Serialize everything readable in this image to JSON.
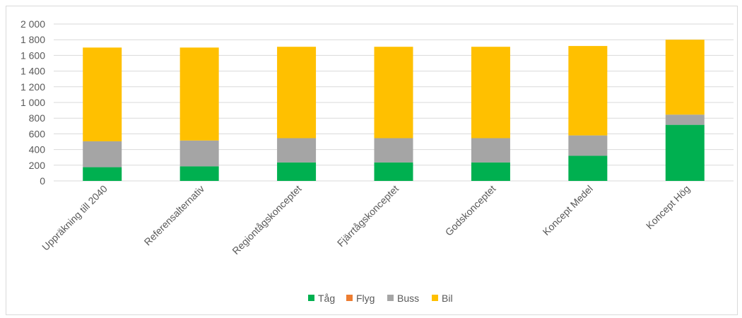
{
  "chart_data": {
    "type": "bar",
    "stacked": true,
    "categories": [
      "Uppräkning till 2040",
      "Referensalternativ",
      "Regiontågskonceptet",
      "Fjärrtågskonceptet",
      "Godskonceptet",
      "Koncept Medel",
      "Koncept Hög"
    ],
    "series": [
      {
        "name": "Tåg",
        "color": "#00b050",
        "values": [
          175,
          185,
          235,
          235,
          235,
          320,
          715
        ]
      },
      {
        "name": "Flyg",
        "color": "#ed7d31",
        "values": [
          0,
          0,
          0,
          0,
          0,
          0,
          0
        ]
      },
      {
        "name": "Buss",
        "color": "#a5a5a5",
        "values": [
          330,
          330,
          310,
          310,
          310,
          260,
          130
        ]
      },
      {
        "name": "Bil",
        "color": "#ffc000",
        "values": [
          1195,
          1185,
          1165,
          1165,
          1165,
          1140,
          955
        ]
      }
    ],
    "yticks": [
      "0",
      "200",
      "400",
      "600",
      "800",
      "1 000",
      "1 200",
      "1 400",
      "1 600",
      "1 800",
      "2 000"
    ],
    "ylim": [
      0,
      2000
    ],
    "grid": true,
    "legend_position": "bottom"
  }
}
